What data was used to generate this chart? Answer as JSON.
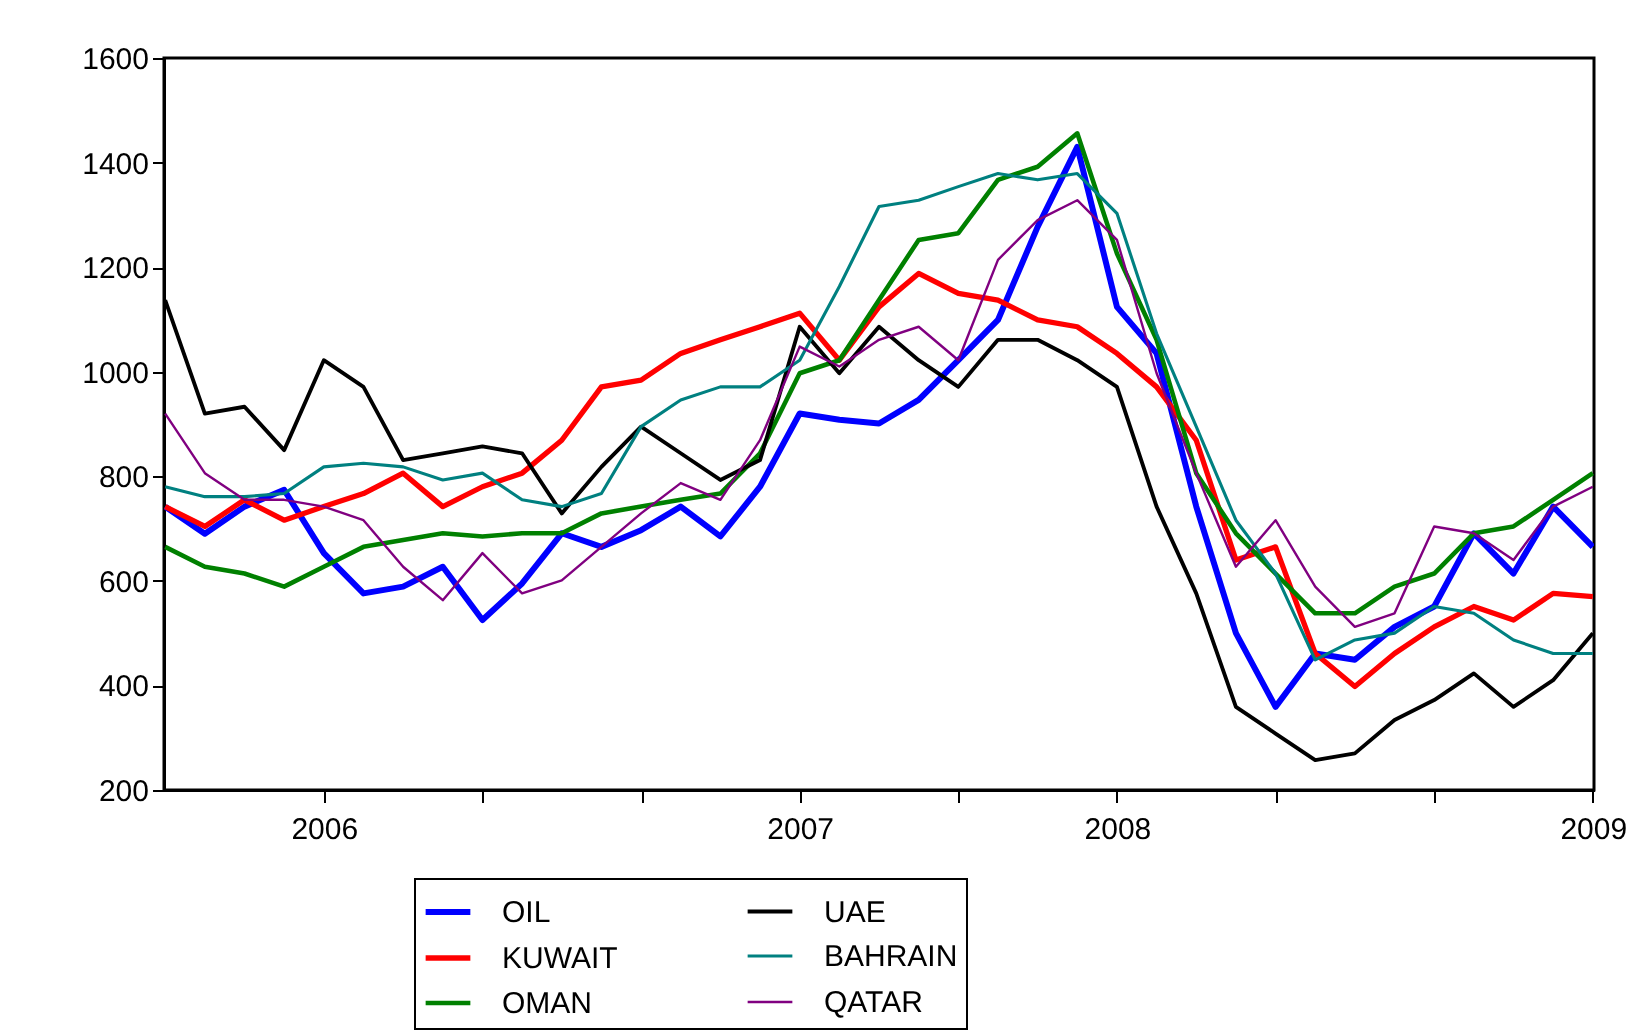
{
  "chart_data": {
    "type": "line",
    "categories": [
      null,
      null,
      null,
      null,
      "2006",
      null,
      null,
      null,
      null,
      null,
      null,
      null,
      null,
      null,
      null,
      null,
      "2007",
      null,
      null,
      null,
      null,
      null,
      null,
      null,
      "2008",
      null,
      null,
      null,
      null,
      null,
      null,
      null,
      null,
      null,
      null,
      null,
      "2009"
    ],
    "ylim": [
      200,
      1600
    ],
    "yticks": [
      200,
      400,
      600,
      800,
      1000,
      1200,
      1400,
      1600
    ],
    "grid": false,
    "legend": "bottom",
    "series": [
      {
        "name": "OIL",
        "color": "#0000ff",
        "values": [
          742,
          690,
          742,
          774,
          653,
          576,
          589,
          627,
          525,
          595,
          691,
          665,
          697,
          742,
          685,
          780,
          920,
          908,
          901,
          946,
          1022,
          1099,
          1277,
          1430,
          1124,
          1035,
          742,
          500,
          359,
          461,
          449,
          512,
          551,
          691,
          614,
          742,
          665
        ]
      },
      {
        "name": "KUWAIT",
        "color": "#ff0000",
        "values": [
          742,
          704,
          755,
          716,
          742,
          767,
          806,
          742,
          780,
          806,
          869,
          971,
          984,
          1035,
          1061,
          1086,
          1112,
          1022,
          1124,
          1188,
          1150,
          1137,
          1099,
          1086,
          1035,
          971,
          869,
          640,
          665,
          461,
          398,
          461,
          512,
          551,
          525,
          576,
          570
        ]
      },
      {
        "name": "OMAN",
        "color": "#008000",
        "values": [
          665,
          627,
          614,
          589,
          627,
          665,
          678,
          691,
          685,
          691,
          691,
          729,
          742,
          755,
          767,
          844,
          997,
          1022,
          1137,
          1252,
          1265,
          1367,
          1392,
          1456,
          1226,
          1061,
          806,
          691,
          614,
          538,
          538,
          589,
          614,
          691,
          704,
          755,
          806
        ]
      },
      {
        "name": "UAE",
        "color": "#000000",
        "values": [
          1137,
          920,
          933,
          850,
          1022,
          971,
          831,
          844,
          857,
          844,
          729,
          818,
          895,
          844,
          793,
          831,
          1086,
          997,
          1086,
          1022,
          971,
          1061,
          1061,
          1022,
          971,
          742,
          576,
          359,
          308,
          257,
          270,
          334,
          372,
          423,
          359,
          410,
          500
        ]
      },
      {
        "name": "BAHRAIN",
        "color": "#008080",
        "values": [
          780,
          761,
          761,
          767,
          818,
          825,
          818,
          793,
          806,
          755,
          742,
          767,
          895,
          946,
          971,
          971,
          1022,
          1163,
          1316,
          1328,
          1354,
          1379,
          1367,
          1379,
          1303,
          1073,
          895,
          716,
          614,
          449,
          487,
          500,
          551,
          538,
          487,
          461,
          461
        ]
      },
      {
        "name": "QATAR",
        "color": "#800080",
        "values": [
          920,
          806,
          755,
          755,
          742,
          716,
          627,
          563,
          653,
          576,
          601,
          665,
          729,
          787,
          755,
          869,
          1048,
          1010,
          1061,
          1086,
          1022,
          1214,
          1290,
          1328,
          1252,
          997,
          806,
          627,
          716,
          589,
          512,
          538,
          704,
          691,
          640,
          742,
          780
        ]
      }
    ]
  }
}
